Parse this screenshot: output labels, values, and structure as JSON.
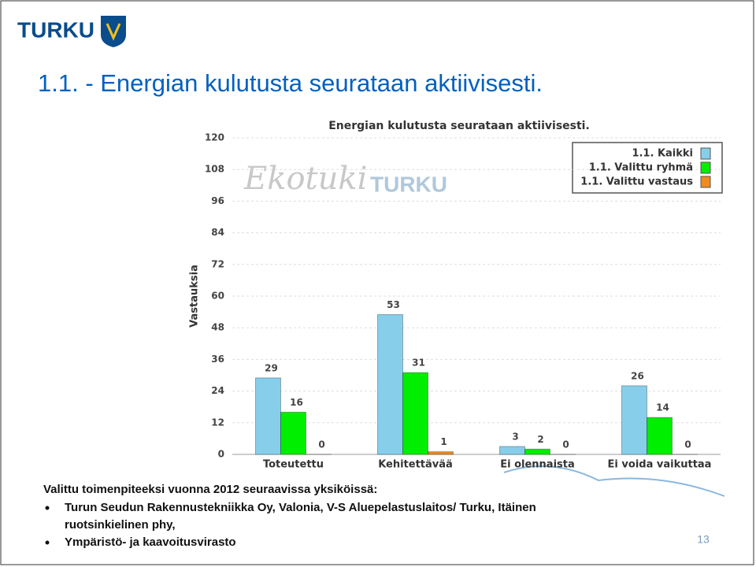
{
  "logo": "TURKU",
  "slide_title": "1.1. - Energian kulutusta seurataan aktiivisesti.",
  "watermark": {
    "brand": "Ekotuki",
    "logo": "TURKU"
  },
  "body": {
    "intro": "Valittu toimenpiteeksi vuonna 2012 seuraavissa yksiköissä:",
    "bullets": [
      {
        "lines": [
          "Turun Seudun Rakennustekniikka Oy, Valonia, V-S Aluepelastuslaitos/ Turku, Itäinen",
          "ruotsinkielinen phy,"
        ]
      },
      {
        "lines": [
          "Ympäristö- ja kaavoitusvirasto"
        ]
      }
    ]
  },
  "page_number": 13,
  "chart_data": {
    "type": "bar",
    "title": "Energian kulutusta seurataan aktiivisesti.",
    "y_label": "Vastauksia",
    "categories": [
      "Toteutettu",
      "Kehitettävää",
      "Ei olennaista",
      "Ei voida vaikuttaa"
    ],
    "series": [
      {
        "name": "1.1. Kaikki",
        "color": "#87ceeb",
        "values": [
          29,
          53,
          3,
          26
        ]
      },
      {
        "name": "1.1. Valittu ryhmä",
        "color": "#00ee00",
        "values": [
          16,
          31,
          2,
          14
        ]
      },
      {
        "name": "1.1. Valittu vastaus",
        "color": "#f08c1e",
        "values": [
          0,
          1,
          0,
          0
        ]
      }
    ],
    "ylim": [
      0,
      120
    ],
    "yticks": [
      0,
      12,
      24,
      36,
      48,
      60,
      72,
      84,
      96,
      108,
      120
    ],
    "grid": true,
    "legend": "top-right"
  }
}
